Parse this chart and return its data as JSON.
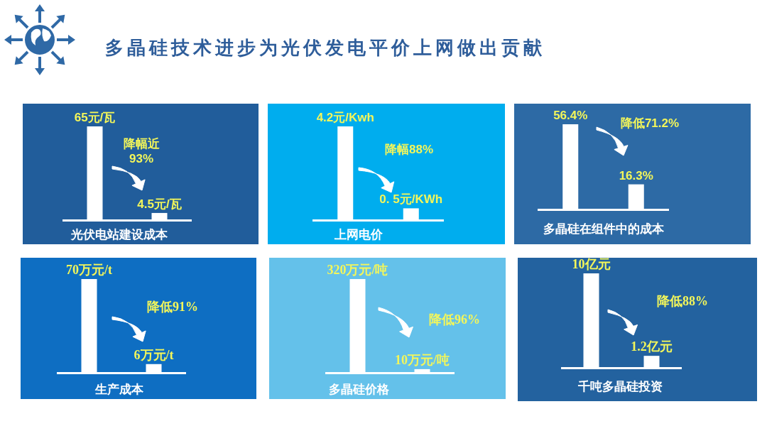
{
  "chart_data": [
    {
      "type": "other",
      "title": "多晶硅技术进步为光伏发电平价上网做出贡献"
    },
    {
      "type": "bar",
      "categories": [
        null,
        null
      ],
      "values": [
        65,
        4.5
      ],
      "color": "#ffffff",
      "value_labels": [
        "65元/瓦",
        "4.5元/瓦"
      ],
      "xlabel": "光伏电站建设成本",
      "annotations": [
        "降幅近93%"
      ]
    },
    {
      "type": "bar",
      "categories": [
        null,
        null
      ],
      "values": [
        4.2,
        0.5
      ],
      "color": "#ffffff",
      "value_labels": [
        "4.2元/Kwh",
        "0. 5元/KWh"
      ],
      "xlabel": "上网电价",
      "annotations": [
        "降幅88%"
      ]
    },
    {
      "type": "bar",
      "categories": [
        null,
        null
      ],
      "values": [
        56.4,
        16.3
      ],
      "color": "#ffffff",
      "value_labels": [
        "56.4%",
        "16.3%"
      ],
      "xlabel": "多晶硅在组件中的成本",
      "annotations": [
        "降低71.2%"
      ]
    },
    {
      "type": "bar",
      "categories": [
        null,
        null
      ],
      "values": [
        70,
        6
      ],
      "color": "#ffffff",
      "value_labels": [
        "70万元/t",
        "6万元/t"
      ],
      "xlabel": "生产成本",
      "annotations": [
        "降低91%"
      ]
    },
    {
      "type": "bar",
      "categories": [
        null,
        null
      ],
      "values": [
        320,
        10
      ],
      "color": "#ffffff",
      "value_labels": [
        "320万元/吨",
        "10万元/吨"
      ],
      "xlabel": "多晶硅价格",
      "annotations": [
        "降低96%"
      ]
    },
    {
      "type": "bar",
      "categories": [
        null,
        null
      ],
      "values": [
        10,
        1.2
      ],
      "color": "#ffffff",
      "value_labels": [
        "10亿元",
        "1.2亿元"
      ],
      "xlabel": "千吨多晶硅投资",
      "annotations": [
        "降低88%"
      ]
    }
  ]
}
